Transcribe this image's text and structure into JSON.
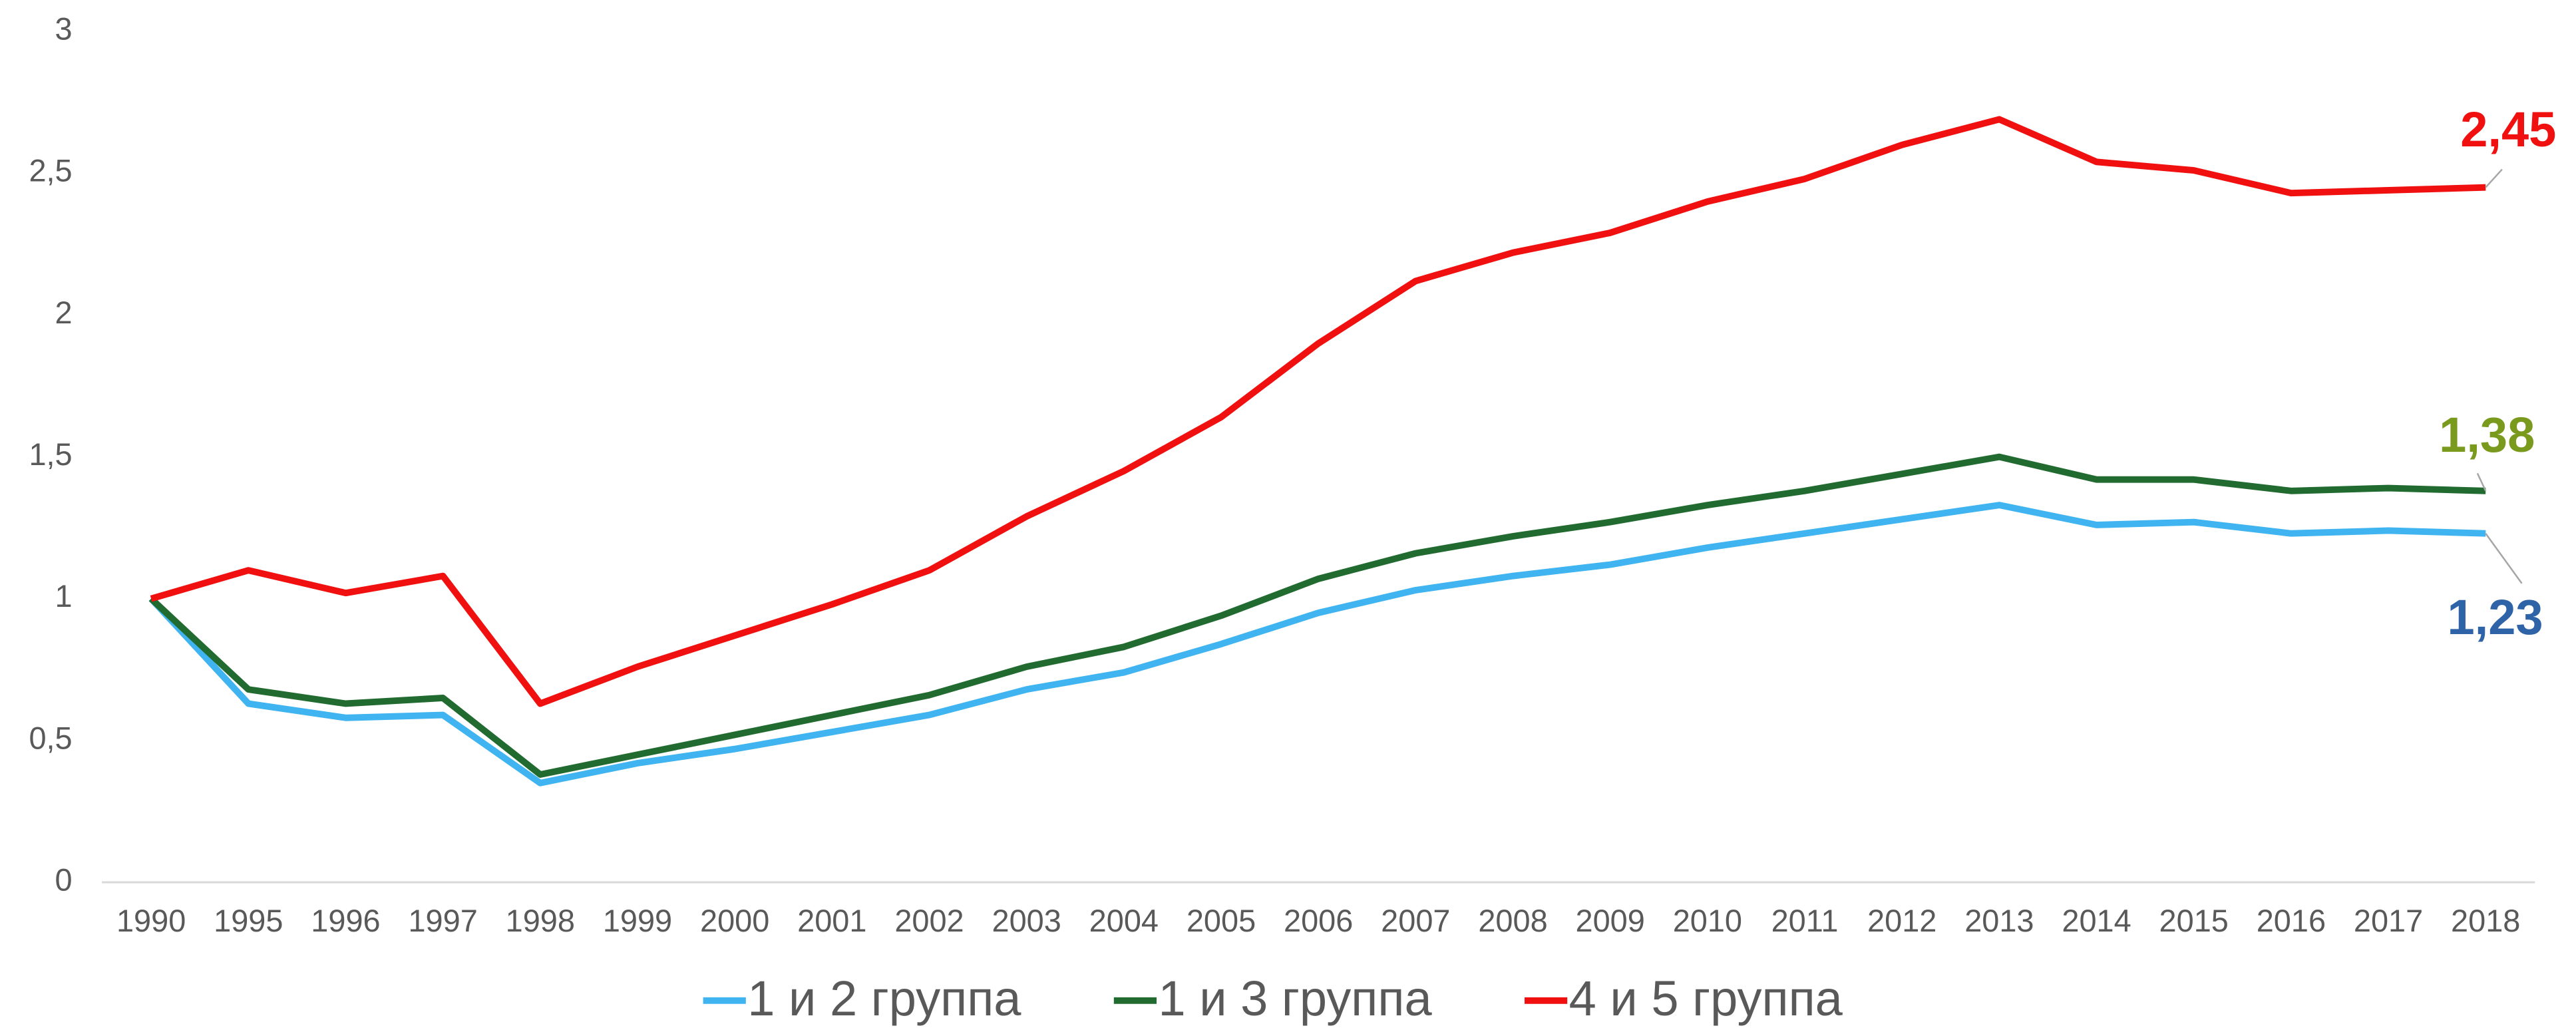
{
  "chart_data": {
    "type": "line",
    "categories": [
      "1990",
      "1995",
      "1996",
      "1997",
      "1998",
      "1999",
      "2000",
      "2001",
      "2002",
      "2003",
      "2004",
      "2005",
      "2006",
      "2007",
      "2008",
      "2009",
      "2010",
      "2011",
      "2012",
      "2013",
      "2014",
      "2015",
      "2016",
      "2017",
      "2018"
    ],
    "series": [
      {
        "name": "1 и 2 группа",
        "color": "#3fb4f0",
        "label_color": "#2e63a8",
        "values": [
          1.0,
          0.63,
          0.58,
          0.59,
          0.35,
          0.42,
          0.47,
          0.53,
          0.59,
          0.68,
          0.74,
          0.84,
          0.95,
          1.03,
          1.08,
          1.12,
          1.18,
          1.23,
          1.28,
          1.33,
          1.26,
          1.27,
          1.23,
          1.24,
          1.23
        ],
        "value_labels": [
          null,
          null,
          null,
          null,
          null,
          null,
          null,
          null,
          null,
          null,
          null,
          null,
          null,
          null,
          null,
          null,
          null,
          null,
          null,
          null,
          null,
          null,
          null,
          null,
          "1,23"
        ]
      },
      {
        "name": "1 и 3 группа",
        "color": "#226b30",
        "label_color": "#7a9a1e",
        "values": [
          1.0,
          0.68,
          0.63,
          0.65,
          0.38,
          0.45,
          0.52,
          0.59,
          0.66,
          0.76,
          0.83,
          0.94,
          1.07,
          1.16,
          1.22,
          1.27,
          1.33,
          1.38,
          1.44,
          1.5,
          1.42,
          1.42,
          1.38,
          1.39,
          1.38
        ],
        "value_labels": [
          null,
          null,
          null,
          null,
          null,
          null,
          null,
          null,
          null,
          null,
          null,
          null,
          null,
          null,
          null,
          null,
          null,
          null,
          null,
          null,
          null,
          null,
          null,
          null,
          "1,38"
        ]
      },
      {
        "name": "4 и 5 группа",
        "color": "#f01010",
        "label_color": "#f01010",
        "values": [
          1.0,
          1.1,
          1.02,
          1.08,
          0.63,
          0.76,
          0.87,
          0.98,
          1.1,
          1.29,
          1.45,
          1.64,
          1.9,
          2.12,
          2.22,
          2.29,
          2.4,
          2.48,
          2.6,
          2.69,
          2.54,
          2.51,
          2.43,
          2.44,
          2.45
        ],
        "value_labels": [
          null,
          null,
          null,
          null,
          null,
          null,
          null,
          null,
          null,
          null,
          null,
          null,
          null,
          null,
          null,
          null,
          null,
          null,
          null,
          null,
          null,
          null,
          null,
          null,
          "2,45"
        ]
      }
    ],
    "ylim": [
      0,
      3
    ],
    "yticks": [
      0,
      {
        "value": 0.5,
        "label": "0,5"
      },
      1,
      {
        "value": 1.5,
        "label": "1,5"
      },
      2,
      {
        "value": 2.5,
        "label": "2,5"
      },
      3
    ],
    "grid": false,
    "legend": "bottom"
  }
}
